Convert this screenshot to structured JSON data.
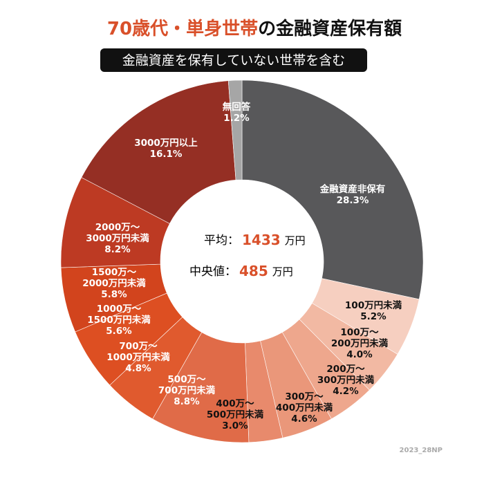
{
  "chart_data": {
    "type": "donut",
    "title": {
      "highlight": "70歳代・単身世帯",
      "rest": "の金融資産保有額"
    },
    "subtitle": "金融資産を保有していない世帯を含む",
    "title_color": "#d9502a",
    "categories": [
      [
        "金融資産非保有"
      ],
      [
        "100万円未満"
      ],
      [
        "100万～",
        "200万円未満"
      ],
      [
        "200万～",
        "300万円未満"
      ],
      [
        "300万～",
        "400万円未満"
      ],
      [
        "400万～",
        "500万円未満"
      ],
      [
        "500万～",
        "700万円未満"
      ],
      [
        "700万～",
        "1000万円未満"
      ],
      [
        "1000万～",
        "1500万円未満"
      ],
      [
        "1500万～",
        "2000万円未満"
      ],
      [
        "2000万～",
        "3000万円未満"
      ],
      [
        "3000万円以上"
      ],
      [
        "無回答"
      ]
    ],
    "values": [
      28.3,
      5.2,
      4.0,
      4.2,
      4.6,
      3.0,
      8.8,
      4.8,
      5.6,
      5.8,
      8.2,
      16.1,
      1.2
    ],
    "value_labels": [
      "28.3%",
      "5.2%",
      "4.0%",
      "4.2%",
      "4.6%",
      "3.0%",
      "8.8%",
      "4.8%",
      "5.6%",
      "5.8%",
      "8.2%",
      "16.1%",
      "1.2%"
    ],
    "colors": [
      "#58585a",
      "#f6cfc0",
      "#f2b9a3",
      "#eea78d",
      "#ea977a",
      "#e88a6c",
      "#e06b48",
      "#e05a2e",
      "#dd4f22",
      "#d2441d",
      "#bd3a23",
      "#952f24",
      "#a6a6a6"
    ],
    "center": [
      {
        "label": "平均：",
        "value": 1433,
        "unit": "万円"
      },
      {
        "label": "中央値：",
        "value": 485,
        "unit": "万円"
      }
    ],
    "credit": "2023_28NP"
  }
}
